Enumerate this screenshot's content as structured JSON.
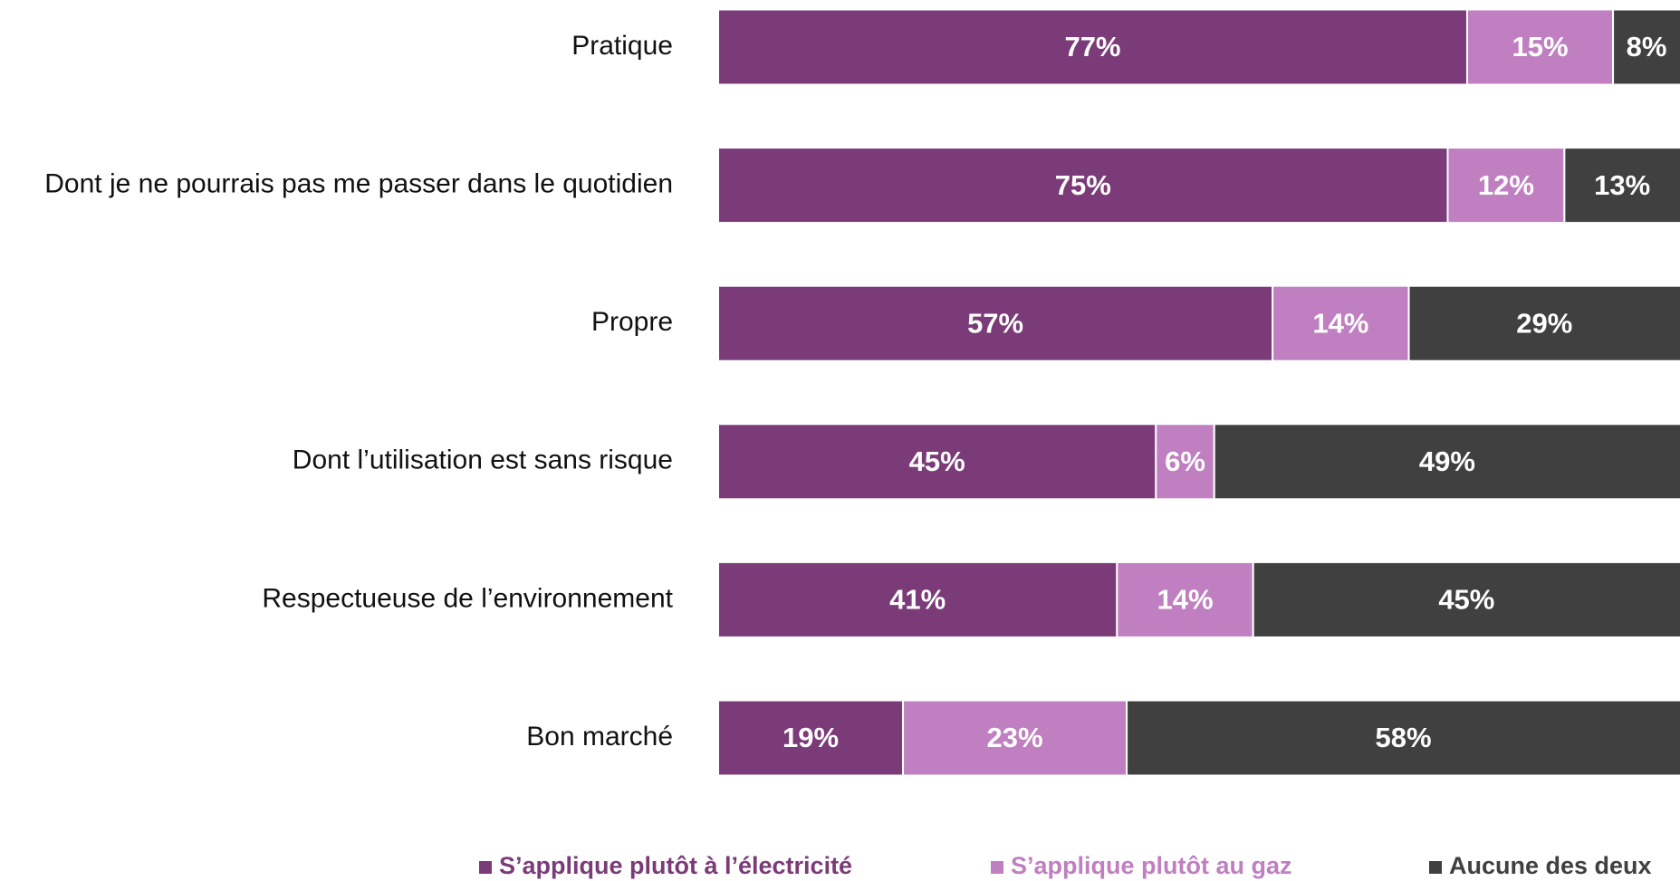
{
  "chart_data": {
    "type": "stacked_barh",
    "categories": [
      "Pratique",
      "Dont je ne pourrais pas me passer dans le quotidien",
      "Propre",
      "Dont l’utilisation est sans risque",
      "Respectueuse de l’environnement",
      "Bon marché"
    ],
    "xlim": [
      0,
      100
    ],
    "legend": "bottom",
    "series": [
      {
        "name": "S’applique plutôt à l’électricité",
        "color": "#7a3b78",
        "values": [
          77,
          75,
          57,
          45,
          41,
          19
        ],
        "value_labels": [
          "77%",
          "75%",
          "57%",
          "45%",
          "41%",
          "19%"
        ]
      },
      {
        "name": "S’applique plutôt au gaz",
        "color": "#bf7fc1",
        "values": [
          15,
          12,
          14,
          6,
          14,
          23
        ],
        "value_labels": [
          "15%",
          "12%",
          "14%",
          "6%",
          "14%",
          "23%"
        ]
      },
      {
        "name": "Aucune des deux",
        "color": "#404040",
        "values": [
          8,
          13,
          29,
          49,
          45,
          58
        ],
        "value_labels": [
          "8%",
          "13%",
          "29%",
          "49%",
          "45%",
          "58%"
        ]
      }
    ]
  }
}
